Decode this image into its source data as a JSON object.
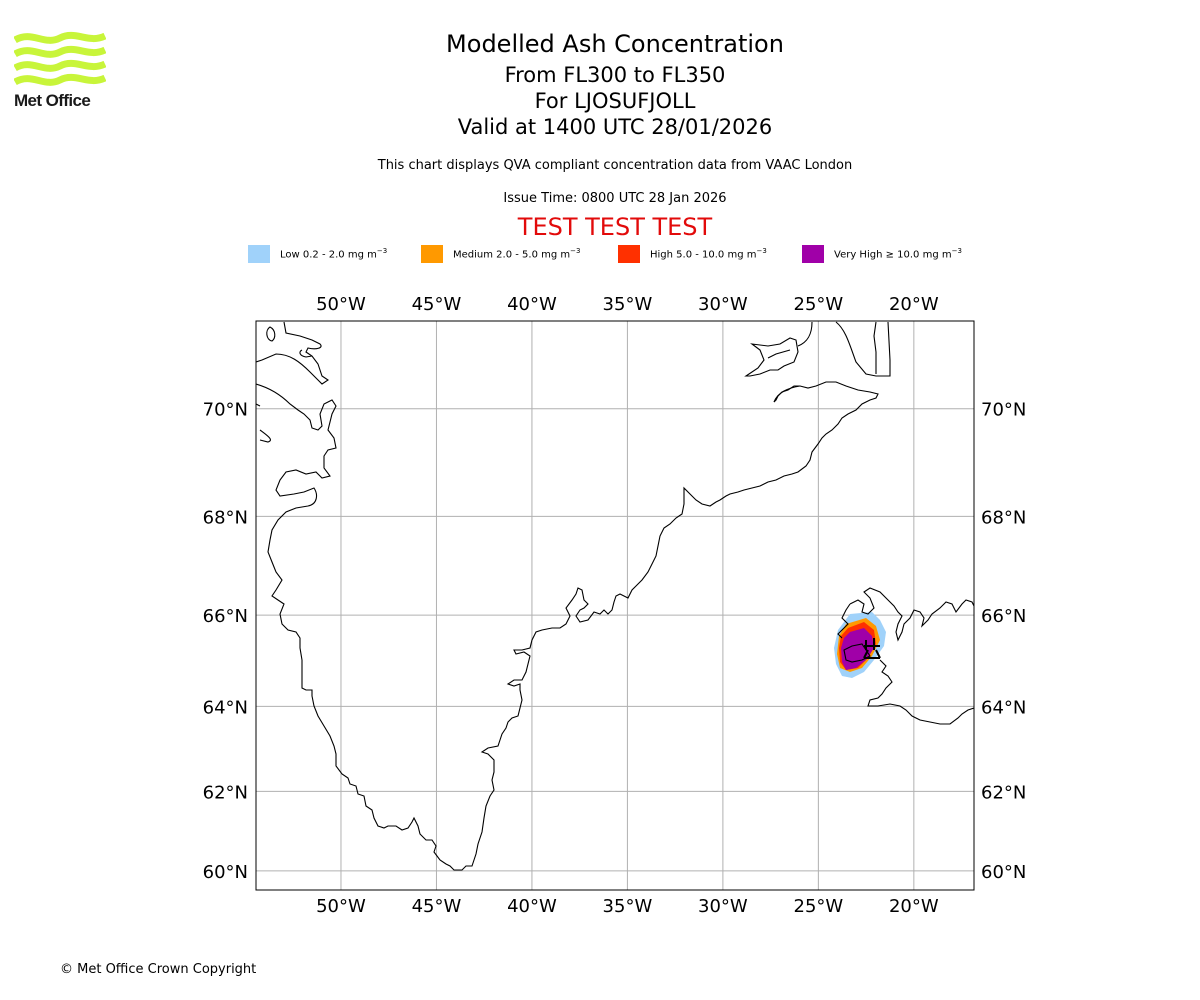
{
  "logo": {
    "text": "Met Office",
    "color": "#c8f53a"
  },
  "header": {
    "title": "Modelled Ash Concentration",
    "level_range": "From FL300 to FL350",
    "volcano": "For LJOSUFJOLL",
    "valid_time": "Valid at 1400 UTC 28/01/2026",
    "note": "This chart displays QVA compliant concentration data from VAAC London",
    "issue_time": "Issue Time: 0800 UTC 28 Jan 2026",
    "test_banner": "TEST TEST TEST",
    "test_color": "#e20a0a"
  },
  "legend": [
    {
      "name": "Low",
      "label_main": "Low 0.2 - 2.0 mg m",
      "exp": "−3",
      "color": "#a0d2fa"
    },
    {
      "name": "Medium",
      "label_main": "Medium 2.0 - 5.0 mg m",
      "exp": "−3",
      "color": "#ff9900"
    },
    {
      "name": "High",
      "label_main": "High 5.0 - 10.0 mg m",
      "exp": "−3",
      "color": "#ff3000"
    },
    {
      "name": "Very High",
      "label_main": "Very High  ≥  10.0 mg m",
      "exp": "−3",
      "color": "#a000a8"
    }
  ],
  "chart_data": {
    "type": "map",
    "projection": "mercator",
    "extent": {
      "lon": [
        -54.45,
        -16.85
      ],
      "lat": [
        59.5,
        71.5
      ]
    },
    "lon_ticks": [
      -50,
      -45,
      -40,
      -35,
      -30,
      -25,
      -20
    ],
    "lon_tick_labels": [
      "50°W",
      "45°W",
      "40°W",
      "35°W",
      "30°W",
      "25°W",
      "20°W"
    ],
    "lat_ticks": [
      70,
      68,
      66,
      64,
      62,
      60
    ],
    "lat_tick_labels": [
      "70°N",
      "68°N",
      "66°N",
      "64°N",
      "62°N",
      "60°N"
    ],
    "grid": true,
    "volcano_location": {
      "lon": -22.6,
      "lat": 64.9
    },
    "ash_levels": [
      "Low",
      "Medium",
      "High",
      "Very High"
    ]
  },
  "footer": {
    "copyright": "© Met Office Crown Copyright"
  }
}
